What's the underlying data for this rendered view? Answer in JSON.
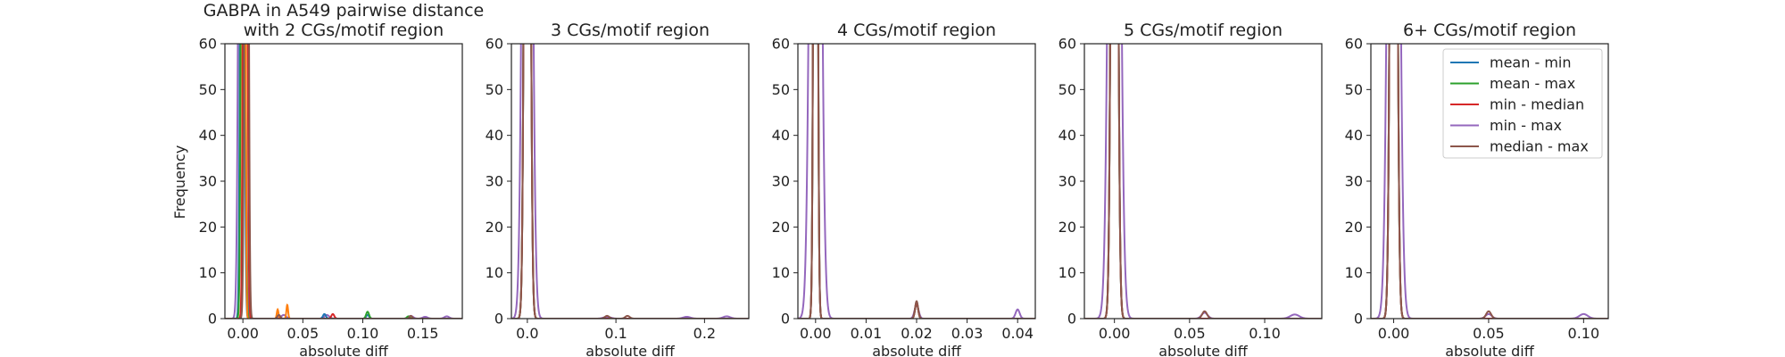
{
  "colors": {
    "axes": "#222222",
    "mean_min": "#1f77b4",
    "mean_max": "#2ca02c",
    "min_median": "#d62728",
    "min_max": "#9467bd",
    "median_max": "#8c564b",
    "orange": "#ff7f0e"
  },
  "chart_data": [
    {
      "type": "line",
      "title": "GABPA in A549 pairwise distance\nwith 2 CGs/motif region",
      "xlabel": "absolute diff",
      "ylabel": "Frequency",
      "xlim": [
        -0.015,
        0.183
      ],
      "ylim": [
        0,
        60
      ],
      "xticks": [
        0.0,
        0.05,
        0.1,
        0.15
      ],
      "xtick_labels": [
        "0.00",
        "0.05",
        "0.10",
        "0.15"
      ],
      "yticks": [
        0,
        10,
        20,
        30,
        40,
        50,
        60
      ],
      "grid": false,
      "series": [
        {
          "color_key": "min_max",
          "peaks": [
            {
              "x": -0.001,
              "h": 300,
              "w": 0.0018
            },
            {
              "x": 0.034,
              "h": 0.8,
              "w": 0.002
            },
            {
              "x": 0.07,
              "h": 0.8,
              "w": 0.002
            },
            {
              "x": 0.14,
              "h": 0.6,
              "w": 0.002
            },
            {
              "x": 0.152,
              "h": 0.4,
              "w": 0.002
            },
            {
              "x": 0.17,
              "h": 0.5,
              "w": 0.002
            }
          ]
        },
        {
          "color_key": "mean_min",
          "peaks": [
            {
              "x": -0.0005,
              "h": 300,
              "w": 0.0012
            },
            {
              "x": 0.068,
              "h": 1.0,
              "w": 0.0012
            },
            {
              "x": 0.104,
              "h": 0.8,
              "w": 0.0012
            }
          ]
        },
        {
          "color_key": "mean_max",
          "peaks": [
            {
              "x": 0.0002,
              "h": 300,
              "w": 0.0012
            },
            {
              "x": 0.104,
              "h": 1.5,
              "w": 0.0012
            },
            {
              "x": 0.138,
              "h": 0.5,
              "w": 0.0012
            }
          ]
        },
        {
          "color_key": "orange",
          "peaks": [
            {
              "x": 0.001,
              "h": 300,
              "w": 0.0008
            },
            {
              "x": 0.029,
              "h": 2.0,
              "w": 0.0007
            },
            {
              "x": 0.037,
              "h": 3.0,
              "w": 0.0007
            }
          ]
        },
        {
          "color_key": "min_median",
          "peaks": [
            {
              "x": 0.002,
              "h": 300,
              "w": 0.0012
            },
            {
              "x": 0.075,
              "h": 1.0,
              "w": 0.0012
            }
          ]
        },
        {
          "color_key": "median_max",
          "peaks": [
            {
              "x": 0.003,
              "h": 300,
              "w": 0.0012
            },
            {
              "x": 0.03,
              "h": 0.8,
              "w": 0.0012
            },
            {
              "x": 0.14,
              "h": 0.6,
              "w": 0.0012
            }
          ]
        }
      ]
    },
    {
      "type": "line",
      "title": "3 CGs/motif region",
      "xlabel": "absolute diff",
      "xlim": [
        -0.018,
        0.25
      ],
      "ylim": [
        0,
        60
      ],
      "xticks": [
        0.0,
        0.1,
        0.2
      ],
      "xtick_labels": [
        "0.0",
        "0.1",
        "0.2"
      ],
      "yticks": [
        0,
        10,
        20,
        30,
        40,
        50,
        60
      ],
      "grid": false,
      "series": [
        {
          "color_key": "min_max",
          "peaks": [
            {
              "x": 0.0,
              "h": 300,
              "w": 0.004
            },
            {
              "x": 0.09,
              "h": 0.4,
              "w": 0.004
            },
            {
              "x": 0.18,
              "h": 0.4,
              "w": 0.004
            },
            {
              "x": 0.225,
              "h": 0.5,
              "w": 0.004
            }
          ]
        },
        {
          "color_key": "mean_min",
          "peaks": [
            {
              "x": 0.0,
              "h": 300,
              "w": 0.0025
            }
          ]
        },
        {
          "color_key": "mean_max",
          "peaks": [
            {
              "x": 0.0,
              "h": 300,
              "w": 0.0025
            }
          ]
        },
        {
          "color_key": "min_median",
          "peaks": [
            {
              "x": 0.0,
              "h": 300,
              "w": 0.0025
            }
          ]
        },
        {
          "color_key": "median_max",
          "peaks": [
            {
              "x": 0.0,
              "h": 300,
              "w": 0.0025
            },
            {
              "x": 0.09,
              "h": 0.6,
              "w": 0.0025
            },
            {
              "x": 0.113,
              "h": 0.6,
              "w": 0.0025
            }
          ]
        }
      ]
    },
    {
      "type": "line",
      "title": "4 CGs/motif region",
      "xlabel": "absolute diff",
      "xlim": [
        -0.0035,
        0.0435
      ],
      "ylim": [
        0,
        60
      ],
      "xticks": [
        0.0,
        0.01,
        0.02,
        0.03,
        0.04
      ],
      "xtick_labels": [
        "0.00",
        "0.01",
        "0.02",
        "0.03",
        "0.04"
      ],
      "yticks": [
        0,
        10,
        20,
        30,
        40,
        50,
        60
      ],
      "grid": false,
      "series": [
        {
          "color_key": "min_max",
          "peaks": [
            {
              "x": 0.0,
              "h": 300,
              "w": 0.0008
            },
            {
              "x": 0.02,
              "h": 3.0,
              "w": 0.0004
            },
            {
              "x": 0.04,
              "h": 2.0,
              "w": 0.0004
            }
          ]
        },
        {
          "color_key": "mean_min",
          "peaks": [
            {
              "x": 0.0,
              "h": 300,
              "w": 0.0003
            },
            {
              "x": 0.02,
              "h": 3.5,
              "w": 0.0003
            }
          ]
        },
        {
          "color_key": "mean_max",
          "peaks": [
            {
              "x": 0.0,
              "h": 300,
              "w": 0.0003
            },
            {
              "x": 0.02,
              "h": 3.5,
              "w": 0.0003
            }
          ]
        },
        {
          "color_key": "min_median",
          "peaks": [
            {
              "x": 0.0,
              "h": 300,
              "w": 0.0003
            },
            {
              "x": 0.02,
              "h": 3.5,
              "w": 0.0003
            }
          ]
        },
        {
          "color_key": "median_max",
          "peaks": [
            {
              "x": 0.0,
              "h": 300,
              "w": 0.0003
            },
            {
              "x": 0.02,
              "h": 3.8,
              "w": 0.0003
            }
          ]
        }
      ]
    },
    {
      "type": "line",
      "title": "5 CGs/motif region",
      "xlabel": "absolute diff",
      "xlim": [
        -0.02,
        0.138
      ],
      "ylim": [
        0,
        60
      ],
      "xticks": [
        0.0,
        0.05,
        0.1
      ],
      "xtick_labels": [
        "0.00",
        "0.05",
        "0.10"
      ],
      "yticks": [
        0,
        10,
        20,
        30,
        40,
        50,
        60
      ],
      "grid": false,
      "series": [
        {
          "color_key": "min_max",
          "peaks": [
            {
              "x": 0.0,
              "h": 300,
              "w": 0.0028
            },
            {
              "x": 0.06,
              "h": 1.3,
              "w": 0.002
            },
            {
              "x": 0.12,
              "h": 0.9,
              "w": 0.003
            }
          ]
        },
        {
          "color_key": "mean_min",
          "peaks": [
            {
              "x": 0.0,
              "h": 300,
              "w": 0.0016
            }
          ]
        },
        {
          "color_key": "mean_max",
          "peaks": [
            {
              "x": 0.0,
              "h": 300,
              "w": 0.0016
            }
          ]
        },
        {
          "color_key": "min_median",
          "peaks": [
            {
              "x": 0.0,
              "h": 300,
              "w": 0.0016
            }
          ]
        },
        {
          "color_key": "median_max",
          "peaks": [
            {
              "x": 0.0,
              "h": 300,
              "w": 0.0016
            },
            {
              "x": 0.06,
              "h": 1.6,
              "w": 0.0016
            }
          ]
        }
      ]
    },
    {
      "type": "line",
      "title": "6+ CGs/motif region",
      "xlabel": "absolute diff",
      "xlim": [
        -0.012,
        0.113
      ],
      "ylim": [
        0,
        60
      ],
      "xticks": [
        0.0,
        0.05,
        0.1
      ],
      "xtick_labels": [
        "0.00",
        "0.05",
        "0.10"
      ],
      "yticks": [
        0,
        10,
        20,
        30,
        40,
        50,
        60
      ],
      "grid": false,
      "legend_position": "top-right",
      "legend": [
        {
          "label": "mean - min",
          "color_key": "mean_min"
        },
        {
          "label": "mean - max",
          "color_key": "mean_max"
        },
        {
          "label": "min - median",
          "color_key": "min_median"
        },
        {
          "label": "min - max",
          "color_key": "min_max"
        },
        {
          "label": "median - max",
          "color_key": "median_max"
        }
      ],
      "series": [
        {
          "color_key": "min_max",
          "peaks": [
            {
              "x": 0.0,
              "h": 300,
              "w": 0.0022
            },
            {
              "x": 0.05,
              "h": 1.0,
              "w": 0.0016
            },
            {
              "x": 0.1,
              "h": 1.0,
              "w": 0.0022
            }
          ]
        },
        {
          "color_key": "mean_min",
          "peaks": [
            {
              "x": 0.0,
              "h": 300,
              "w": 0.0013
            }
          ]
        },
        {
          "color_key": "mean_max",
          "peaks": [
            {
              "x": 0.0,
              "h": 300,
              "w": 0.0013
            }
          ]
        },
        {
          "color_key": "min_median",
          "peaks": [
            {
              "x": 0.0,
              "h": 300,
              "w": 0.0013
            }
          ]
        },
        {
          "color_key": "median_max",
          "peaks": [
            {
              "x": 0.0,
              "h": 300,
              "w": 0.0013
            },
            {
              "x": 0.05,
              "h": 1.6,
              "w": 0.0013
            }
          ]
        }
      ]
    }
  ]
}
